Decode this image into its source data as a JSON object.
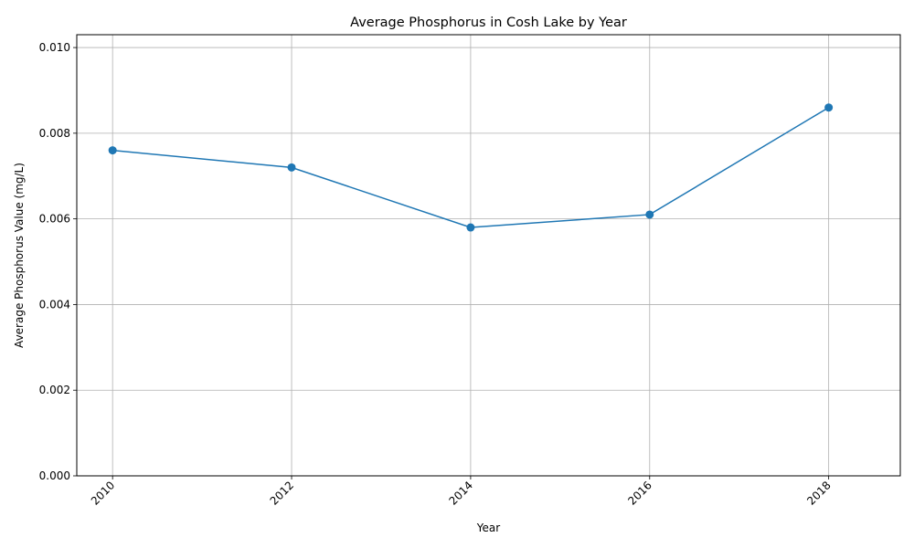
{
  "chart_data": {
    "type": "line",
    "title": "Average Phosphorus in Cosh Lake by Year",
    "xlabel": "Year",
    "ylabel": "Average Phosphorus Value (mg/L)",
    "x": [
      2010,
      2012,
      2014,
      2016,
      2018
    ],
    "y": [
      0.0076,
      0.0072,
      0.0058,
      0.0061,
      0.0086
    ],
    "xlim": [
      2009.6,
      2018.8
    ],
    "ylim": [
      0,
      0.0103
    ],
    "xticks": [
      "2010",
      "2012",
      "2014",
      "2016",
      "2018"
    ],
    "yticks": [
      "0.000",
      "0.002",
      "0.004",
      "0.006",
      "0.008",
      "0.010"
    ],
    "grid": true,
    "line_color": "#1f77b4",
    "marker": "circle"
  }
}
